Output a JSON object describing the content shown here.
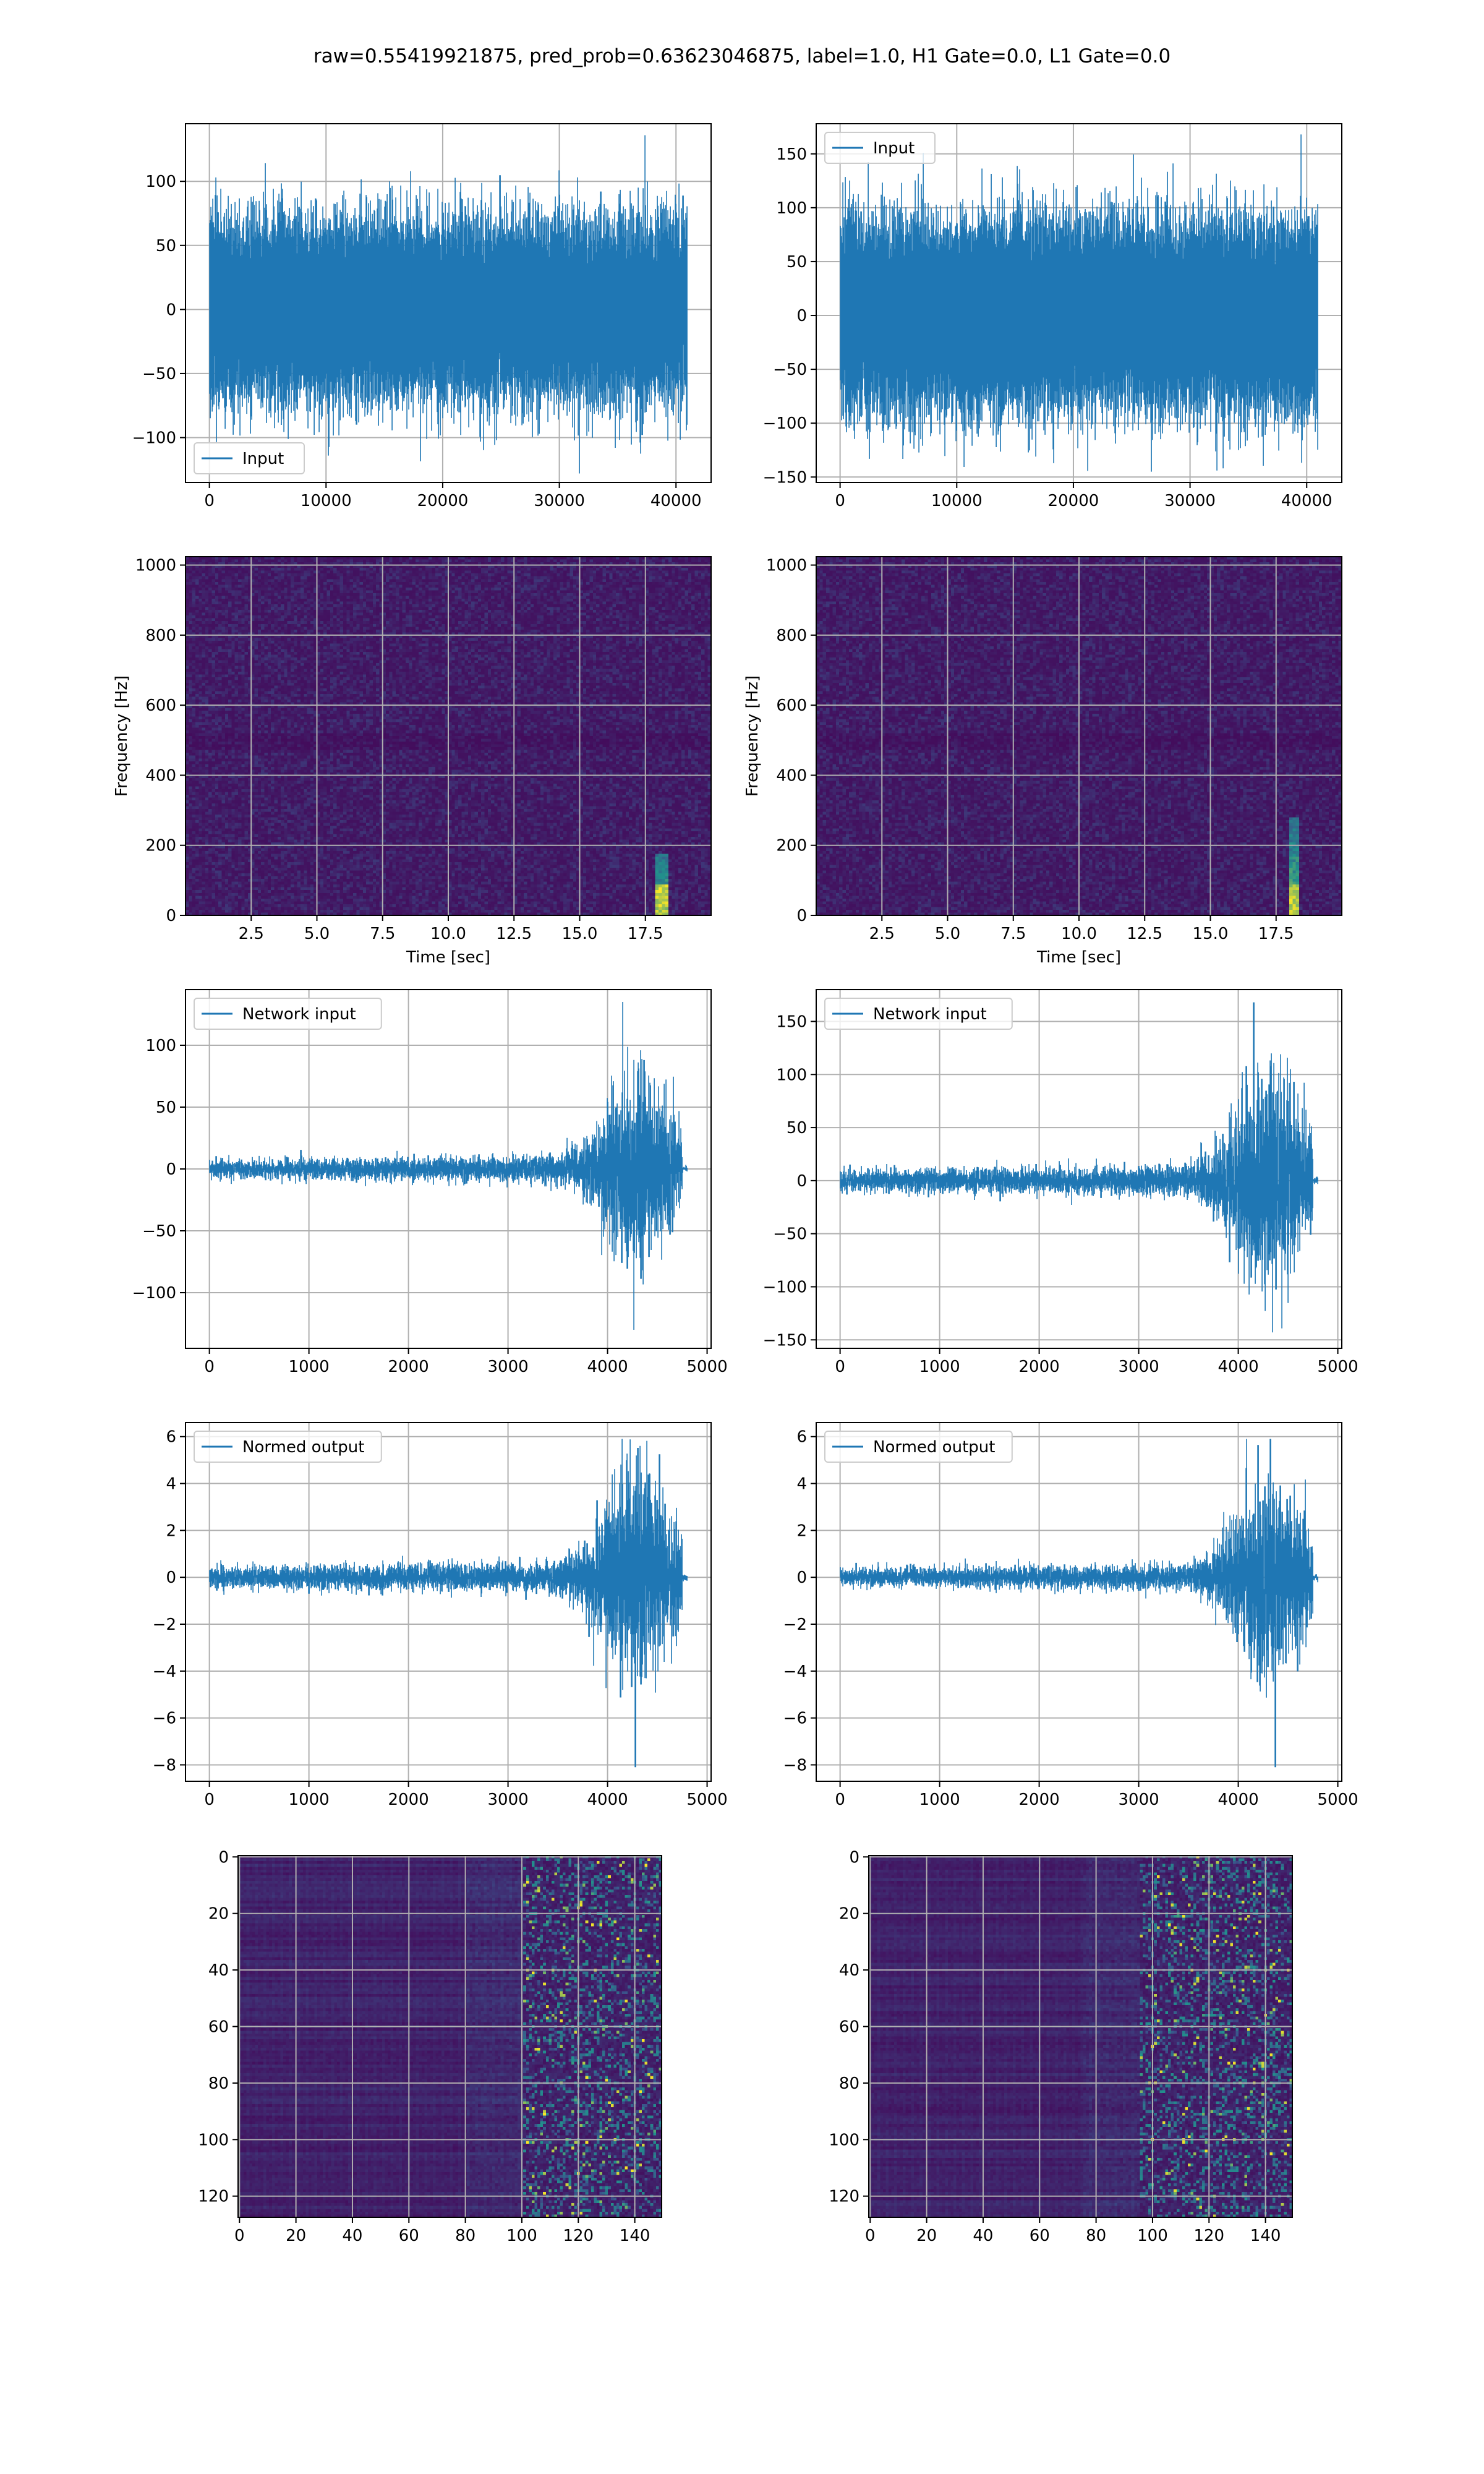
{
  "figure_title": "raw=0.55419921875, pred_prob=0.63623046875, label=1.0, H1 Gate=0.0, L1 Gate=0.0",
  "colors": {
    "line": "#1f77b4",
    "grid": "#b0b0b0",
    "viridis_low": "#440154",
    "viridis_mid": "#21918c",
    "viridis_high": "#fde725"
  },
  "chart_data": [
    {
      "id": "input-h",
      "type": "line",
      "legend": "Input",
      "legend_loc": "lower left",
      "xlim": [
        -2048,
        43008
      ],
      "ylim": [
        -135,
        145
      ],
      "grid": true,
      "xticks": [
        0,
        10000,
        20000,
        30000,
        40000
      ],
      "yticks": [
        -100,
        -50,
        0,
        50,
        100
      ],
      "xticklabels": [
        "0",
        "10000",
        "20000",
        "30000",
        "40000"
      ],
      "yticklabels": [
        "−100",
        "−50",
        "0",
        "50",
        "100"
      ],
      "xlabel": "",
      "ylabel": "",
      "signal": {
        "kind": "noise",
        "n": 40960,
        "x_end": 40960,
        "amp": 62,
        "min": -128,
        "max": 136,
        "seed": 11
      }
    },
    {
      "id": "input-l",
      "type": "line",
      "legend": "Input",
      "legend_loc": "upper left",
      "xlim": [
        -2048,
        43008
      ],
      "ylim": [
        -155,
        178
      ],
      "grid": true,
      "xticks": [
        0,
        10000,
        20000,
        30000,
        40000
      ],
      "yticks": [
        -150,
        -100,
        -50,
        0,
        50,
        100,
        150
      ],
      "xticklabels": [
        "0",
        "10000",
        "20000",
        "30000",
        "40000"
      ],
      "yticklabels": [
        "−150",
        "−100",
        "−50",
        "0",
        "50",
        "100",
        "150"
      ],
      "xlabel": "",
      "ylabel": "",
      "signal": {
        "kind": "noise",
        "n": 40960,
        "x_end": 40960,
        "amp": 68,
        "min": -145,
        "max": 168,
        "seed": 23
      }
    },
    {
      "id": "spec-h",
      "type": "heatmap",
      "xlabel": "Time [sec]",
      "ylabel": "Frequency [Hz]",
      "xlim": [
        0,
        20
      ],
      "ylim": [
        0,
        1024
      ],
      "grid": true,
      "xticks": [
        2.5,
        5.0,
        7.5,
        10.0,
        12.5,
        15.0,
        17.5
      ],
      "yticks": [
        0,
        200,
        400,
        600,
        800,
        1000
      ],
      "xticklabels": [
        "2.5",
        "5.0",
        "7.5",
        "10.0",
        "12.5",
        "15.0",
        "17.5"
      ],
      "yticklabels": [
        "0",
        "200",
        "400",
        "600",
        "800",
        "1000"
      ],
      "cells": {
        "kind": "spectrogram",
        "cols": 160,
        "rows": 128,
        "chirp_time": 18.1,
        "chirp_fmax": 180,
        "seed": 5
      }
    },
    {
      "id": "spec-l",
      "type": "heatmap",
      "xlabel": "Time [sec]",
      "ylabel": "Frequency [Hz]",
      "xlim": [
        0,
        20
      ],
      "ylim": [
        0,
        1024
      ],
      "grid": true,
      "xticks": [
        2.5,
        5.0,
        7.5,
        10.0,
        12.5,
        15.0,
        17.5
      ],
      "yticks": [
        0,
        200,
        400,
        600,
        800,
        1000
      ],
      "xticklabels": [
        "2.5",
        "5.0",
        "7.5",
        "10.0",
        "12.5",
        "15.0",
        "17.5"
      ],
      "yticklabels": [
        "0",
        "200",
        "400",
        "600",
        "800",
        "1000"
      ],
      "cells": {
        "kind": "spectrogram",
        "cols": 160,
        "rows": 128,
        "chirp_time": 18.2,
        "chirp_fmax": 280,
        "seed": 9
      }
    },
    {
      "id": "net-h",
      "type": "line",
      "legend": "Network input",
      "legend_loc": "upper left",
      "xlim": [
        -240,
        5040
      ],
      "ylim": [
        -145,
        145
      ],
      "grid": true,
      "xticks": [
        0,
        1000,
        2000,
        3000,
        4000,
        5000
      ],
      "yticks": [
        -100,
        -50,
        0,
        50,
        100
      ],
      "xticklabels": [
        "0",
        "1000",
        "2000",
        "3000",
        "4000",
        "5000"
      ],
      "yticklabels": [
        "−100",
        "−50",
        "0",
        "50",
        "100"
      ],
      "xlabel": "",
      "ylabel": "",
      "signal": {
        "kind": "burst",
        "n": 4800,
        "x_end": 4800,
        "base": 11,
        "peak_x": 4300,
        "peak": 95,
        "cut_x": 4750,
        "min": -130,
        "max": 135,
        "seed": 31
      }
    },
    {
      "id": "net-l",
      "type": "line",
      "legend": "Network input",
      "legend_loc": "upper left",
      "xlim": [
        -240,
        5040
      ],
      "ylim": [
        -158,
        180
      ],
      "grid": true,
      "xticks": [
        0,
        1000,
        2000,
        3000,
        4000,
        5000
      ],
      "yticks": [
        -150,
        -100,
        -50,
        0,
        50,
        100,
        150
      ],
      "xticklabels": [
        "0",
        "1000",
        "2000",
        "3000",
        "4000",
        "5000"
      ],
      "yticklabels": [
        "−150",
        "−100",
        "−50",
        "0",
        "50",
        "100",
        "150"
      ],
      "xlabel": "",
      "ylabel": "",
      "signal": {
        "kind": "burst",
        "n": 4800,
        "x_end": 4800,
        "base": 12,
        "peak_x": 4300,
        "peak": 105,
        "cut_x": 4750,
        "min": -143,
        "max": 168,
        "seed": 37
      }
    },
    {
      "id": "out-h",
      "type": "line",
      "legend": "Normed output",
      "legend_loc": "upper left",
      "xlim": [
        -240,
        5040
      ],
      "ylim": [
        -8.7,
        6.6
      ],
      "grid": true,
      "xticks": [
        0,
        1000,
        2000,
        3000,
        4000,
        5000
      ],
      "yticks": [
        -8,
        -6,
        -4,
        -2,
        0,
        2,
        4,
        6
      ],
      "xticklabels": [
        "0",
        "1000",
        "2000",
        "3000",
        "4000",
        "5000"
      ],
      "yticklabels": [
        "−8",
        "−6",
        "−4",
        "−2",
        "0",
        "2",
        "4",
        "6"
      ],
      "xlabel": "",
      "ylabel": "",
      "signal": {
        "kind": "burst",
        "n": 4800,
        "x_end": 4800,
        "base": 0.5,
        "peak_x": 4300,
        "peak": 4.0,
        "cut_x": 4750,
        "min": -8.1,
        "max": 5.9,
        "seed": 41
      }
    },
    {
      "id": "out-l",
      "type": "line",
      "legend": "Normed output",
      "legend_loc": "upper left",
      "xlim": [
        -240,
        5040
      ],
      "ylim": [
        -8.7,
        6.6
      ],
      "grid": true,
      "xticks": [
        0,
        1000,
        2000,
        3000,
        4000,
        5000
      ],
      "yticks": [
        -8,
        -6,
        -4,
        -2,
        0,
        2,
        4,
        6
      ],
      "xticklabels": [
        "0",
        "1000",
        "2000",
        "3000",
        "4000",
        "5000"
      ],
      "yticklabels": [
        "−8",
        "−6",
        "−4",
        "−2",
        "0",
        "2",
        "4",
        "6"
      ],
      "xlabel": "",
      "ylabel": "",
      "signal": {
        "kind": "burst",
        "n": 4800,
        "x_end": 4800,
        "base": 0.45,
        "peak_x": 4300,
        "peak": 4.1,
        "cut_x": 4750,
        "min": -8.1,
        "max": 5.9,
        "seed": 43
      }
    },
    {
      "id": "feat-h",
      "type": "heatmap",
      "xlabel": "",
      "ylabel": "",
      "xlim": [
        -0.5,
        149.5
      ],
      "ylim": [
        127.5,
        -0.5
      ],
      "grid": true,
      "xticks": [
        0,
        20,
        40,
        60,
        80,
        100,
        120,
        140
      ],
      "yticks": [
        0,
        20,
        40,
        60,
        80,
        100,
        120
      ],
      "xticklabels": [
        "0",
        "20",
        "40",
        "60",
        "80",
        "100",
        "120",
        "140"
      ],
      "yticklabels": [
        "0",
        "20",
        "40",
        "60",
        "80",
        "100",
        "120"
      ],
      "cells": {
        "kind": "features",
        "cols": 150,
        "rows": 128,
        "onset": 100,
        "seed": 53
      }
    },
    {
      "id": "feat-l",
      "type": "heatmap",
      "xlabel": "",
      "ylabel": "",
      "xlim": [
        -0.5,
        149.5
      ],
      "ylim": [
        127.5,
        -0.5
      ],
      "grid": true,
      "xticks": [
        0,
        20,
        40,
        60,
        80,
        100,
        120,
        140
      ],
      "yticks": [
        0,
        20,
        40,
        60,
        80,
        100,
        120
      ],
      "xticklabels": [
        "0",
        "20",
        "40",
        "60",
        "80",
        "100",
        "120",
        "140"
      ],
      "yticklabels": [
        "0",
        "20",
        "40",
        "60",
        "80",
        "100",
        "120"
      ],
      "cells": {
        "kind": "features",
        "cols": 150,
        "rows": 128,
        "onset": 95,
        "seed": 59
      }
    }
  ]
}
